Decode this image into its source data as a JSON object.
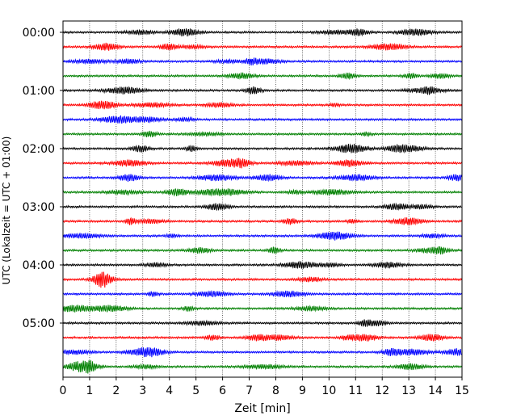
{
  "chart_data": {
    "type": "line",
    "title": "",
    "xlabel": "Zeit  [min]",
    "ylabel": "UTC (Lokalzeit = UTC + 01:00)",
    "xlim": [
      0,
      15
    ],
    "x_ticks": [
      "0",
      "1",
      "2",
      "3",
      "4",
      "5",
      "6",
      "7",
      "8",
      "9",
      "10",
      "11",
      "12",
      "13",
      "14",
      "15"
    ],
    "y_ticks": [
      "00:00",
      "01:00",
      "02:00",
      "03:00",
      "04:00",
      "05:00"
    ],
    "grid": "vertical dotted lines at each minute",
    "trace_colors": [
      "#000000",
      "#ff0000",
      "#0000ff",
      "#008000"
    ],
    "traces": [
      {
        "start_utc": "00:00",
        "color": "#000000"
      },
      {
        "start_utc": "00:15",
        "color": "#ff0000"
      },
      {
        "start_utc": "00:30",
        "color": "#0000ff"
      },
      {
        "start_utc": "00:45",
        "color": "#008000"
      },
      {
        "start_utc": "01:00",
        "color": "#000000"
      },
      {
        "start_utc": "01:15",
        "color": "#ff0000"
      },
      {
        "start_utc": "01:30",
        "color": "#0000ff"
      },
      {
        "start_utc": "01:45",
        "color": "#008000"
      },
      {
        "start_utc": "02:00",
        "color": "#000000"
      },
      {
        "start_utc": "02:15",
        "color": "#ff0000"
      },
      {
        "start_utc": "02:30",
        "color": "#0000ff"
      },
      {
        "start_utc": "02:45",
        "color": "#008000"
      },
      {
        "start_utc": "03:00",
        "color": "#000000"
      },
      {
        "start_utc": "03:15",
        "color": "#ff0000"
      },
      {
        "start_utc": "03:30",
        "color": "#0000ff"
      },
      {
        "start_utc": "03:45",
        "color": "#008000"
      },
      {
        "start_utc": "04:00",
        "color": "#000000"
      },
      {
        "start_utc": "04:15",
        "color": "#ff0000"
      },
      {
        "start_utc": "04:30",
        "color": "#0000ff"
      },
      {
        "start_utc": "04:45",
        "color": "#008000"
      },
      {
        "start_utc": "05:00",
        "color": "#000000"
      },
      {
        "start_utc": "05:15",
        "color": "#ff0000"
      },
      {
        "start_utc": "05:30",
        "color": "#0000ff"
      },
      {
        "start_utc": "05:45",
        "color": "#008000"
      }
    ]
  }
}
